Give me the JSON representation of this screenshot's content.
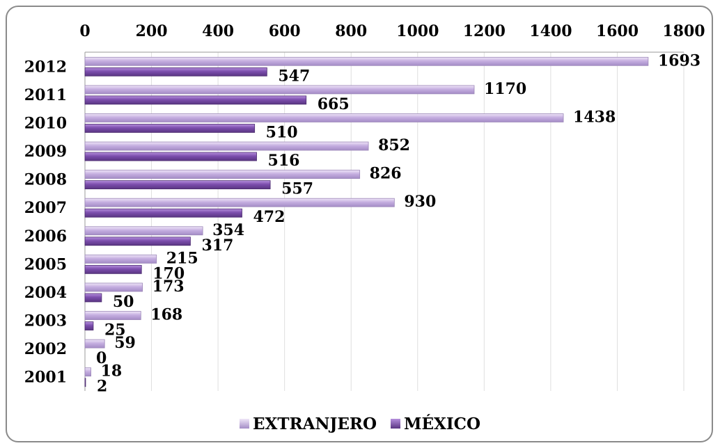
{
  "chart_data": {
    "type": "bar",
    "orientation": "horizontal",
    "categories": [
      "2012",
      "2011",
      "2010",
      "2009",
      "2008",
      "2007",
      "2006",
      "2005",
      "2004",
      "2003",
      "2002",
      "2001"
    ],
    "series": [
      {
        "name": "EXTRANJERO",
        "color": "#c9b2e3",
        "values": [
          1693,
          1170,
          1438,
          852,
          826,
          930,
          354,
          215,
          173,
          168,
          59,
          18
        ]
      },
      {
        "name": "MÉXICO",
        "color": "#7f4fae",
        "values": [
          547,
          665,
          510,
          516,
          557,
          472,
          317,
          170,
          50,
          25,
          0,
          2
        ]
      }
    ],
    "xlim": [
      0,
      1800
    ],
    "xticks": [
      0,
      200,
      400,
      600,
      800,
      1000,
      1200,
      1400,
      1600,
      1800
    ],
    "xaxis_position": "top",
    "grid": true,
    "legend": "bottom",
    "title": "",
    "xlabel": "",
    "ylabel": ""
  }
}
